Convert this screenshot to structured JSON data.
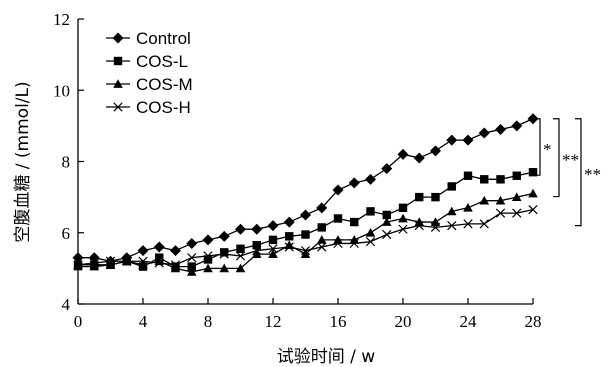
{
  "chart_data": {
    "type": "line",
    "ylabel": "空腹血糖 / (mmol/L)",
    "xlabel": "试验时间 / w",
    "xlim": [
      0,
      28
    ],
    "ylim": [
      4,
      12
    ],
    "xticks": [
      0,
      4,
      8,
      12,
      16,
      20,
      24,
      28
    ],
    "yticks": [
      4,
      6,
      8,
      10,
      12
    ],
    "legend_position": "top-left",
    "grid": false,
    "x": [
      0,
      1,
      2,
      3,
      4,
      5,
      6,
      7,
      8,
      9,
      10,
      11,
      12,
      13,
      14,
      15,
      16,
      17,
      18,
      19,
      20,
      21,
      22,
      23,
      24,
      25,
      26,
      27,
      28
    ],
    "series": [
      {
        "name": "Control",
        "marker": "diamond",
        "values": [
          5.3,
          5.3,
          5.2,
          5.3,
          5.5,
          5.6,
          5.5,
          5.7,
          5.8,
          5.9,
          6.1,
          6.1,
          6.2,
          6.3,
          6.5,
          6.7,
          7.2,
          7.4,
          7.5,
          7.8,
          8.2,
          8.1,
          8.3,
          8.6,
          8.6,
          8.8,
          8.9,
          9.0,
          9.2
        ]
      },
      {
        "name": "COS-L",
        "marker": "square",
        "values": [
          5.1,
          5.1,
          5.1,
          5.2,
          5.05,
          5.3,
          5.05,
          5.05,
          5.25,
          5.45,
          5.55,
          5.65,
          5.8,
          5.9,
          5.95,
          6.15,
          6.4,
          6.3,
          6.6,
          6.5,
          6.7,
          7.0,
          7.0,
          7.3,
          7.6,
          7.5,
          7.5,
          7.6,
          7.7
        ]
      },
      {
        "name": "COS-M",
        "marker": "triangle",
        "values": [
          5.05,
          5.05,
          5.1,
          5.2,
          5.1,
          5.2,
          5.0,
          4.9,
          5.0,
          5.0,
          5.0,
          5.4,
          5.4,
          5.65,
          5.4,
          5.8,
          5.8,
          5.8,
          6.0,
          6.3,
          6.4,
          6.3,
          6.3,
          6.6,
          6.7,
          6.9,
          6.9,
          7.0,
          7.1
        ]
      },
      {
        "name": "COS-H",
        "marker": "cross",
        "values": [
          5.1,
          5.15,
          5.2,
          5.2,
          5.2,
          5.15,
          5.1,
          5.3,
          5.35,
          5.4,
          5.35,
          5.5,
          5.55,
          5.6,
          5.5,
          5.6,
          5.7,
          5.7,
          5.75,
          5.95,
          6.1,
          6.2,
          6.15,
          6.2,
          6.25,
          6.25,
          6.55,
          6.55,
          6.65
        ]
      }
    ],
    "significance": [
      "*",
      "**",
      "**"
    ]
  }
}
